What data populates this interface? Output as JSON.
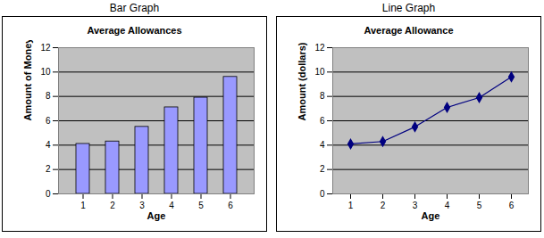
{
  "chart_data": [
    {
      "type": "bar",
      "panel_title": "Bar Graph",
      "title": "Average Allowances",
      "x_label": "Age",
      "y_label": "Amount of Money (dollars)",
      "categories": [
        "1",
        "2",
        "3",
        "4",
        "5",
        "6"
      ],
      "values": [
        4.1,
        4.3,
        5.5,
        7.1,
        7.9,
        9.6
      ],
      "color": "#9999ff",
      "ylim": [
        0,
        12
      ],
      "yticks": [
        0,
        2,
        4,
        6,
        8,
        10,
        12
      ],
      "grid": true
    },
    {
      "type": "line",
      "panel_title": "Line Graph",
      "title": "Average Allowance",
      "x_label": "Age",
      "y_label": "Amount (dollars)",
      "categories": [
        "1",
        "2",
        "3",
        "4",
        "5",
        "6"
      ],
      "values": [
        4.1,
        4.3,
        5.5,
        7.1,
        7.9,
        9.6
      ],
      "color": "#000080",
      "marker": "diamond",
      "line_style": "solid",
      "ylim": [
        0,
        12
      ],
      "yticks": [
        0,
        2,
        4,
        6,
        8,
        10,
        12
      ],
      "grid": true
    }
  ]
}
